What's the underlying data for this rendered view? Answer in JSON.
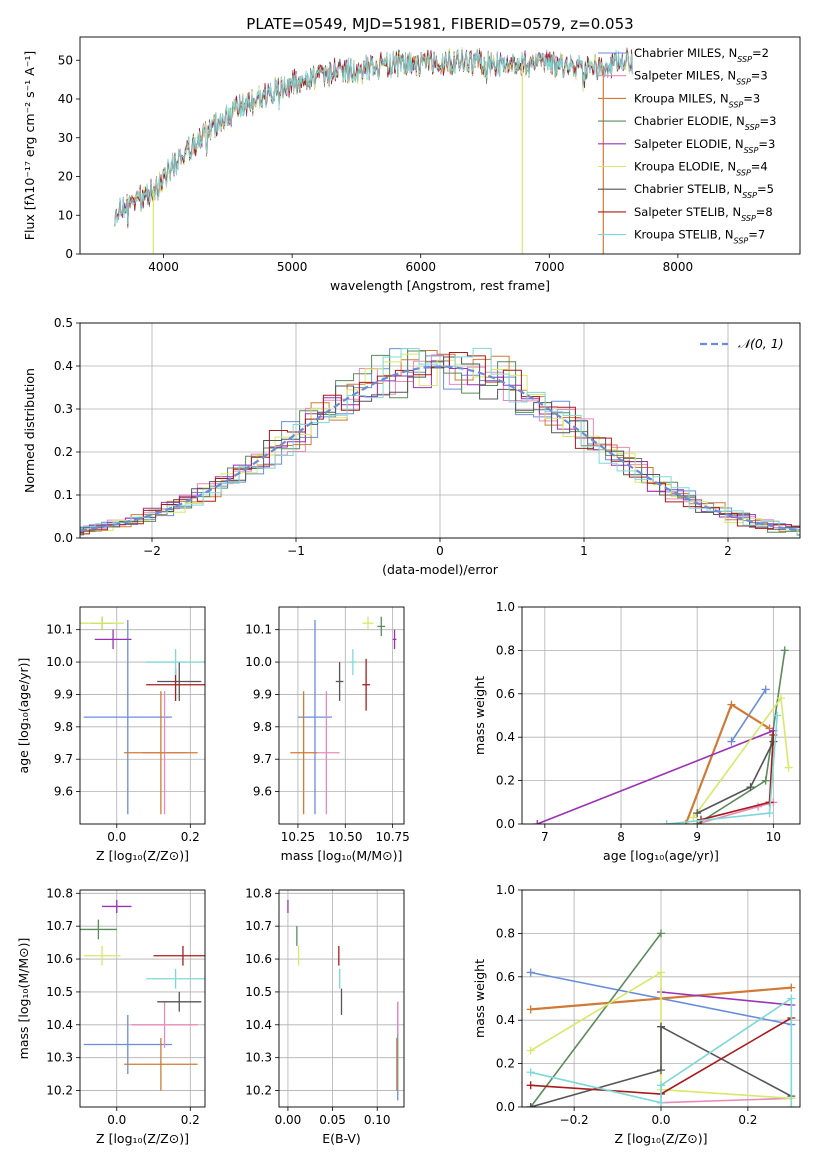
{
  "figure_title": "PLATE=0549, MJD=51981, FIBERID=0579, z=0.053",
  "models": [
    {
      "name": "Chabrier MILES",
      "nssp": "2",
      "color": "#6a8ddb"
    },
    {
      "name": "Salpeter MILES",
      "nssp": "3",
      "color": "#e88bb8"
    },
    {
      "name": "Kroupa MILES",
      "nssp": "3",
      "color": "#d07a36"
    },
    {
      "name": "Chabrier ELODIE",
      "nssp": "3",
      "color": "#5b8a5b"
    },
    {
      "name": "Salpeter ELODIE",
      "nssp": "3",
      "color": "#9b32b5"
    },
    {
      "name": "Kroupa ELODIE",
      "nssp": "4",
      "color": "#d8e86a"
    },
    {
      "name": "Chabrier STELIB",
      "nssp": "5",
      "color": "#555555"
    },
    {
      "name": "Salpeter STELIB",
      "nssp": "8",
      "color": "#a81c1c"
    },
    {
      "name": "Kroupa STELIB",
      "nssp": "7",
      "color": "#7fd8d8"
    }
  ],
  "chart_data": [
    {
      "id": "spectrum",
      "type": "line",
      "title": "PLATE=0549, MJD=51981, FIBERID=0579, z=0.053",
      "xlabel": "wavelength [Angstrom, rest frame]",
      "ylabel": "Flux [fλ10⁻¹⁷ erg cm⁻² s⁻¹ A⁻¹]",
      "xlim": [
        3350,
        8950
      ],
      "ylim": [
        0,
        56
      ],
      "xticks": [
        4000,
        5000,
        6000,
        7000,
        8000
      ],
      "yticks": [
        0,
        10,
        20,
        30,
        40,
        50
      ],
      "grid": false,
      "legend": "right",
      "continuum": {
        "x": [
          3620,
          3800,
          3950,
          4100,
          4300,
          4500,
          4800,
          5000,
          5200,
          5500,
          5800,
          6000,
          6300,
          6600,
          7000,
          7300,
          7500,
          7650
        ],
        "y": [
          11,
          14,
          17,
          24,
          30,
          36,
          41,
          44,
          46,
          48,
          49,
          49,
          50,
          49,
          49,
          48,
          49,
          50
        ]
      },
      "model_end_x": [
        7650,
        7650,
        7430,
        7650,
        7650,
        7650,
        7650,
        7650,
        7650
      ],
      "dropouts": [
        {
          "x": 3920,
          "model": 5
        },
        {
          "x": 6790,
          "model": 5
        },
        {
          "x": 7420,
          "model": 2
        }
      ]
    },
    {
      "id": "residuals",
      "type": "line",
      "xlabel": "(data-model)/error",
      "ylabel": "Normed distribution",
      "xlim": [
        -2.5,
        2.5
      ],
      "ylim": [
        0,
        0.5
      ],
      "xticks": [
        -2,
        -1,
        0,
        1,
        2
      ],
      "yticks": [
        0.0,
        0.1,
        0.2,
        0.3,
        0.4,
        0.5
      ],
      "grid": true,
      "legend": "top-right",
      "reference": {
        "name": "𝒩(0, 1)",
        "color": "#6a8ddb",
        "mean": 0,
        "sigma": 1
      }
    },
    {
      "id": "age-vs-z",
      "type": "scatter",
      "xlabel": "Z [log₁₀(Z/Z⊙)]",
      "ylabel": "age  [log₁₀(age/yr)]",
      "xlim": [
        -0.1,
        0.24
      ],
      "ylim": [
        9.5,
        10.17
      ],
      "xticks": [
        0.0,
        0.2
      ],
      "yticks": [
        9.6,
        9.7,
        9.8,
        9.9,
        10.0,
        10.1
      ],
      "points": [
        {
          "m": 0,
          "x": 0.03,
          "y": 9.83,
          "xerr": 0.12,
          "yerr": 0.3
        },
        {
          "m": 1,
          "x": 0.13,
          "y": 9.72,
          "xerr": 0.06,
          "yerr": 0.19
        },
        {
          "m": 2,
          "x": 0.12,
          "y": 9.72,
          "xerr": 0.1,
          "yerr": 0.19
        },
        {
          "m": 3,
          "x": -0.04,
          "y": 10.12,
          "xerr": 0.03,
          "yerr": 0.02
        },
        {
          "m": 4,
          "x": -0.01,
          "y": 10.07,
          "xerr": 0.05,
          "yerr": 0.03
        },
        {
          "m": 5,
          "x": -0.04,
          "y": 10.12,
          "xerr": 0.06,
          "yerr": 0.02
        },
        {
          "m": 6,
          "x": 0.17,
          "y": 9.94,
          "xerr": 0.06,
          "yerr": 0.06
        },
        {
          "m": 7,
          "x": 0.16,
          "y": 9.93,
          "xerr": 0.08,
          "yerr": 0.05
        },
        {
          "m": 8,
          "x": 0.16,
          "y": 10.0,
          "xerr": 0.08,
          "yerr": 0.04
        }
      ]
    },
    {
      "id": "age-vs-mass",
      "type": "scatter",
      "xlabel": "mass [log₁₀(M/M⊙)]",
      "xlim": [
        10.15,
        10.81
      ],
      "ylim": [
        9.5,
        10.17
      ],
      "xticks": [
        10.25,
        10.5,
        10.75
      ],
      "yticks": [
        9.6,
        9.7,
        9.8,
        9.9,
        10.0,
        10.1
      ],
      "points": [
        {
          "m": 0,
          "x": 10.34,
          "y": 9.83,
          "xerr": 0.09,
          "yerr": 0.3
        },
        {
          "m": 1,
          "x": 10.4,
          "y": 9.72,
          "xerr": 0.07,
          "yerr": 0.19
        },
        {
          "m": 2,
          "x": 10.28,
          "y": 9.72,
          "xerr": 0.07,
          "yerr": 0.19
        },
        {
          "m": 3,
          "x": 10.69,
          "y": 10.11,
          "xerr": 0.02,
          "yerr": 0.03
        },
        {
          "m": 4,
          "x": 10.76,
          "y": 10.07,
          "xerr": 0.01,
          "yerr": 0.03
        },
        {
          "m": 5,
          "x": 10.62,
          "y": 10.12,
          "xerr": 0.03,
          "yerr": 0.02
        },
        {
          "m": 6,
          "x": 10.47,
          "y": 9.94,
          "xerr": 0.02,
          "yerr": 0.06
        },
        {
          "m": 7,
          "x": 10.61,
          "y": 9.93,
          "xerr": 0.02,
          "yerr": 0.08
        },
        {
          "m": 8,
          "x": 10.54,
          "y": 10.0,
          "xerr": 0.02,
          "yerr": 0.04
        }
      ]
    },
    {
      "id": "weight-vs-age",
      "type": "line",
      "xlabel": "age  [log₁₀(age/yr)]",
      "ylabel": "mass weight",
      "xlim": [
        6.7,
        10.35
      ],
      "ylim": [
        0,
        1
      ],
      "xticks": [
        7,
        8,
        9,
        10
      ],
      "yticks": [
        0.0,
        0.2,
        0.4,
        0.6,
        0.8,
        1.0
      ],
      "grid": true,
      "series": [
        {
          "m": 0,
          "x": [
            9.45,
            9.9
          ],
          "y": [
            0.38,
            0.62
          ]
        },
        {
          "m": 1,
          "x": [
            9.0,
            9.8,
            10.0
          ],
          "y": [
            0.0,
            0.08,
            0.1
          ]
        },
        {
          "m": 2,
          "x": [
            8.85,
            9.45,
            9.95
          ],
          "y": [
            0.0,
            0.55,
            0.44
          ]
        },
        {
          "m": 3,
          "x": [
            9.0,
            9.9,
            10.15
          ],
          "y": [
            0.0,
            0.2,
            0.8
          ]
        },
        {
          "m": 4,
          "x": [
            6.9,
            10.0
          ],
          "y": [
            0.0,
            0.43
          ]
        },
        {
          "m": 5,
          "x": [
            8.95,
            10.1,
            10.2
          ],
          "y": [
            0.03,
            0.58,
            0.26
          ]
        },
        {
          "m": 6,
          "x": [
            9.0,
            9.7,
            10.0
          ],
          "y": [
            0.05,
            0.17,
            0.38
          ]
        },
        {
          "m": 7,
          "x": [
            9.05,
            9.95,
            10.0
          ],
          "y": [
            0.02,
            0.1,
            0.41
          ]
        },
        {
          "m": 8,
          "x": [
            8.6,
            9.95,
            10.05
          ],
          "y": [
            0.0,
            0.05,
            0.5
          ]
        }
      ]
    },
    {
      "id": "mass-vs-z",
      "type": "scatter",
      "xlabel": "Z [log₁₀(Z/Z⊙)]",
      "ylabel": "mass [log₁₀(M/M⊙)]",
      "xlim": [
        -0.1,
        0.24
      ],
      "ylim": [
        10.15,
        10.81
      ],
      "xticks": [
        0.0,
        0.2
      ],
      "yticks": [
        10.2,
        10.3,
        10.4,
        10.5,
        10.6,
        10.7,
        10.8
      ],
      "points": [
        {
          "m": 0,
          "x": 0.03,
          "y": 10.34,
          "xerr": 0.12,
          "yerr": 0.09
        },
        {
          "m": 1,
          "x": 0.13,
          "y": 10.4,
          "xerr": 0.09,
          "yerr": 0.07
        },
        {
          "m": 2,
          "x": 0.12,
          "y": 10.28,
          "xerr": 0.1,
          "yerr": 0.08
        },
        {
          "m": 3,
          "x": -0.05,
          "y": 10.69,
          "xerr": 0.05,
          "yerr": 0.03
        },
        {
          "m": 4,
          "x": 0.0,
          "y": 10.76,
          "xerr": 0.04,
          "yerr": 0.02
        },
        {
          "m": 5,
          "x": -0.04,
          "y": 10.61,
          "xerr": 0.05,
          "yerr": 0.03
        },
        {
          "m": 6,
          "x": 0.17,
          "y": 10.47,
          "xerr": 0.06,
          "yerr": 0.03
        },
        {
          "m": 7,
          "x": 0.18,
          "y": 10.61,
          "xerr": 0.08,
          "yerr": 0.03
        },
        {
          "m": 8,
          "x": 0.16,
          "y": 10.54,
          "xerr": 0.08,
          "yerr": 0.03
        }
      ]
    },
    {
      "id": "mass-vs-ebv",
      "type": "scatter",
      "xlabel": "E(B-V)",
      "xlim": [
        -0.01,
        0.13
      ],
      "ylim": [
        10.15,
        10.81
      ],
      "xticks": [
        0.0,
        0.05,
        0.1
      ],
      "yticks": [
        10.2,
        10.3,
        10.4,
        10.5,
        10.6,
        10.7,
        10.8
      ],
      "points": [
        {
          "m": 0,
          "x": 0.123,
          "y": 10.32,
          "xerr": 0.0,
          "yerr": 0.15
        },
        {
          "m": 1,
          "x": 0.123,
          "y": 10.42,
          "xerr": 0.0,
          "yerr": 0.05
        },
        {
          "m": 2,
          "x": 0.122,
          "y": 10.28,
          "xerr": 0.0,
          "yerr": 0.08
        },
        {
          "m": 3,
          "x": 0.01,
          "y": 10.67,
          "xerr": 0.0,
          "yerr": 0.03
        },
        {
          "m": 4,
          "x": 0.0,
          "y": 10.76,
          "xerr": 0.0,
          "yerr": 0.02
        },
        {
          "m": 5,
          "x": 0.012,
          "y": 10.61,
          "xerr": 0.0,
          "yerr": 0.03
        },
        {
          "m": 6,
          "x": 0.06,
          "y": 10.47,
          "xerr": 0.0,
          "yerr": 0.04
        },
        {
          "m": 7,
          "x": 0.057,
          "y": 10.61,
          "xerr": 0.0,
          "yerr": 0.03
        },
        {
          "m": 8,
          "x": 0.058,
          "y": 10.54,
          "xerr": 0.0,
          "yerr": 0.03
        }
      ]
    },
    {
      "id": "weight-vs-z",
      "type": "line",
      "xlabel": "Z [log₁₀(Z/Z⊙)]",
      "ylabel": "mass weight",
      "xlim": [
        -0.32,
        0.32
      ],
      "ylim": [
        0,
        1
      ],
      "xticks": [
        -0.2,
        0.0,
        0.2
      ],
      "yticks": [
        0.0,
        0.2,
        0.4,
        0.6,
        0.8,
        1.0
      ],
      "grid": true,
      "series": [
        {
          "m": 0,
          "x": [
            -0.3,
            0.3
          ],
          "y": [
            0.62,
            0.38
          ]
        },
        {
          "m": 1,
          "x": [
            0.0,
            0.3
          ],
          "y": [
            0.02,
            0.04
          ]
        },
        {
          "m": 2,
          "x": [
            -0.3,
            0.3
          ],
          "y": [
            0.45,
            0.55
          ]
        },
        {
          "m": 3,
          "x": [
            -0.3,
            0.0
          ],
          "y": [
            0.0,
            0.8
          ]
        },
        {
          "m": 4,
          "x": [
            0.0,
            0.3
          ],
          "y": [
            0.53,
            0.47
          ]
        },
        {
          "m": 5,
          "x": [
            -0.3,
            0.0,
            0.0,
            0.3
          ],
          "y": [
            0.26,
            0.62,
            0.08,
            0.04
          ]
        },
        {
          "m": 6,
          "x": [
            -0.3,
            0.0,
            0.0,
            0.3
          ],
          "y": [
            0.0,
            0.17,
            0.37,
            0.05
          ]
        },
        {
          "m": 7,
          "x": [
            -0.3,
            0.0,
            0.3
          ],
          "y": [
            0.1,
            0.06,
            0.41
          ]
        },
        {
          "m": 8,
          "x": [
            -0.3,
            0.0,
            0.0,
            0.3,
            0.3
          ],
          "y": [
            0.16,
            0.02,
            0.1,
            0.5,
            0.0
          ]
        }
      ]
    }
  ]
}
